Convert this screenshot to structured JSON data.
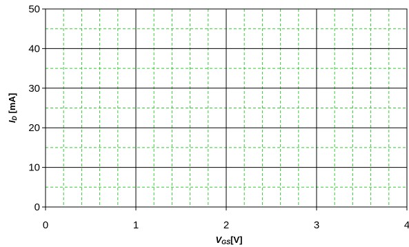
{
  "chart_data": {
    "type": "scatter",
    "title": "",
    "xlabel": {
      "symbol": "V",
      "subscript": "GS",
      "unit": "[V]"
    },
    "ylabel": {
      "symbol": "I",
      "subscript": "D",
      "unit": " [mA]"
    },
    "xlim": [
      0,
      4
    ],
    "ylim": [
      0,
      50
    ],
    "xticks": [
      "0",
      "1",
      "2",
      "3",
      "4"
    ],
    "yticks": [
      "0",
      "10",
      "20",
      "30",
      "40",
      "50"
    ],
    "major_grid": {
      "x_step": 1,
      "y_step": 10,
      "color": "#000000",
      "style": "solid"
    },
    "minor_grid": {
      "x_step": 0.2,
      "y_step": 5,
      "color": "#33cc33",
      "style": "dashed"
    },
    "series": []
  }
}
